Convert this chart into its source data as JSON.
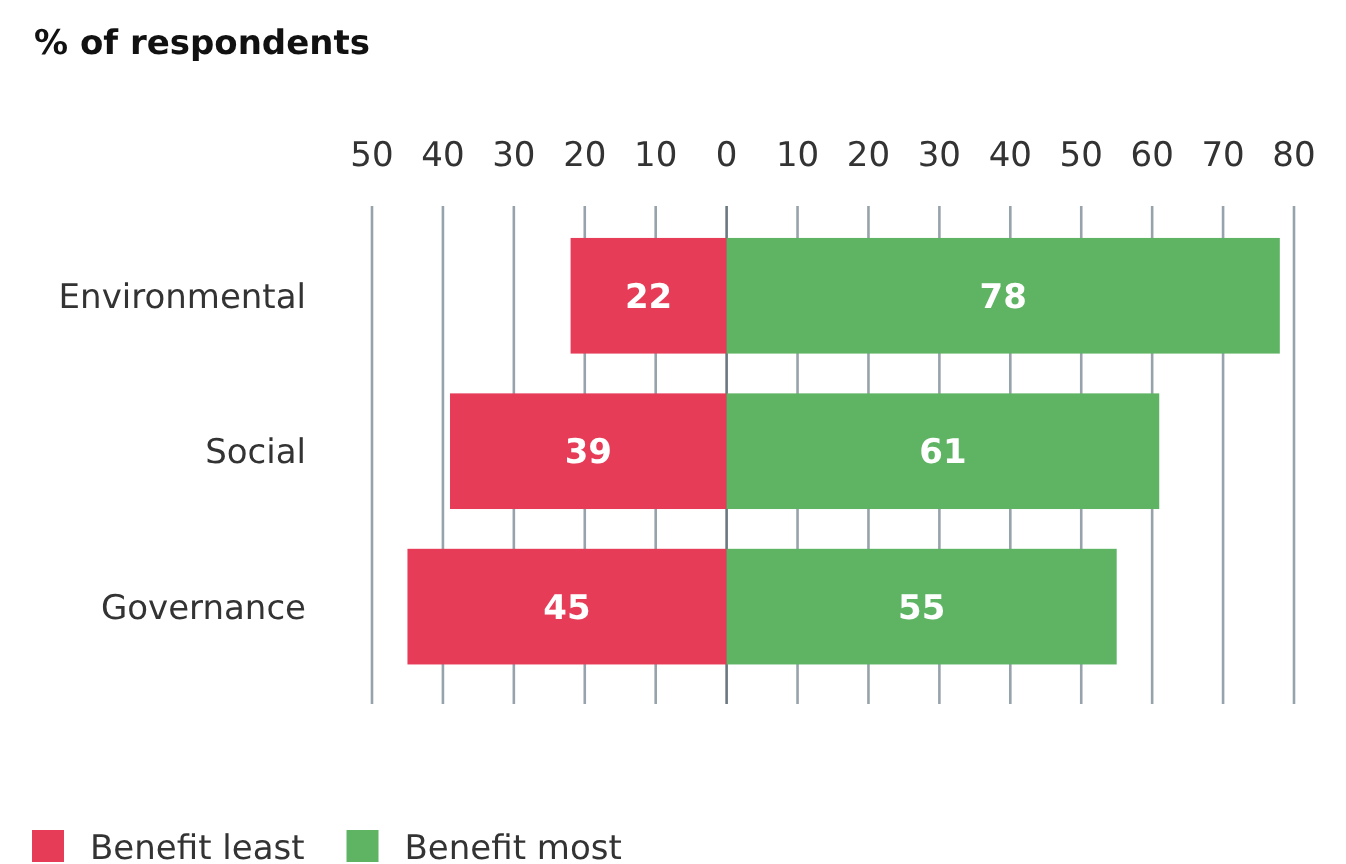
{
  "chart_data": {
    "type": "bar",
    "orientation": "horizontal",
    "title": "% of respondents",
    "categories": [
      "Environmental",
      "Social",
      "Governance"
    ],
    "series": [
      {
        "name": "Benefit least",
        "color": "#e63c57",
        "values": [
          22,
          39,
          45
        ],
        "base": [
          -22,
          -39,
          -45
        ]
      },
      {
        "name": "Benefit most",
        "color": "#5fb464",
        "values": [
          78,
          61,
          55
        ]
      }
    ],
    "xlim": [
      -50,
      80
    ],
    "xticks": [
      {
        "value": -50,
        "label": "50"
      },
      {
        "value": -40,
        "label": "40"
      },
      {
        "value": -30,
        "label": "30"
      },
      {
        "value": -20,
        "label": "20"
      },
      {
        "value": -10,
        "label": "10"
      },
      0,
      10,
      20,
      30,
      40,
      50,
      60,
      70,
      80
    ],
    "data_labels": true,
    "grid": "x",
    "legend": "bottom"
  }
}
